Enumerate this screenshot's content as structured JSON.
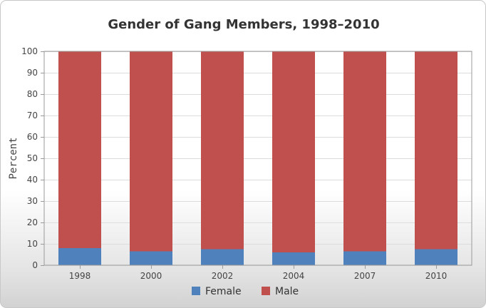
{
  "chart_data": {
    "type": "bar",
    "stacked": true,
    "title": "Gender of Gang Members, 1998–2010",
    "xlabel": "",
    "ylabel": "Percent",
    "ylim": [
      0,
      100
    ],
    "yticks": [
      0,
      10,
      20,
      30,
      40,
      50,
      60,
      70,
      80,
      90,
      100
    ],
    "categories": [
      "1998",
      "2000",
      "2002",
      "2004",
      "2007",
      "2010"
    ],
    "series": [
      {
        "name": "Female",
        "color": "#4f81bd",
        "values": [
          8,
          6.5,
          7.5,
          6,
          6.5,
          7.5
        ]
      },
      {
        "name": "Male",
        "color": "#c0504d",
        "values": [
          92,
          93.5,
          92.5,
          94,
          93.5,
          92.5
        ]
      }
    ],
    "grid": true,
    "legend": "bottom-center"
  }
}
